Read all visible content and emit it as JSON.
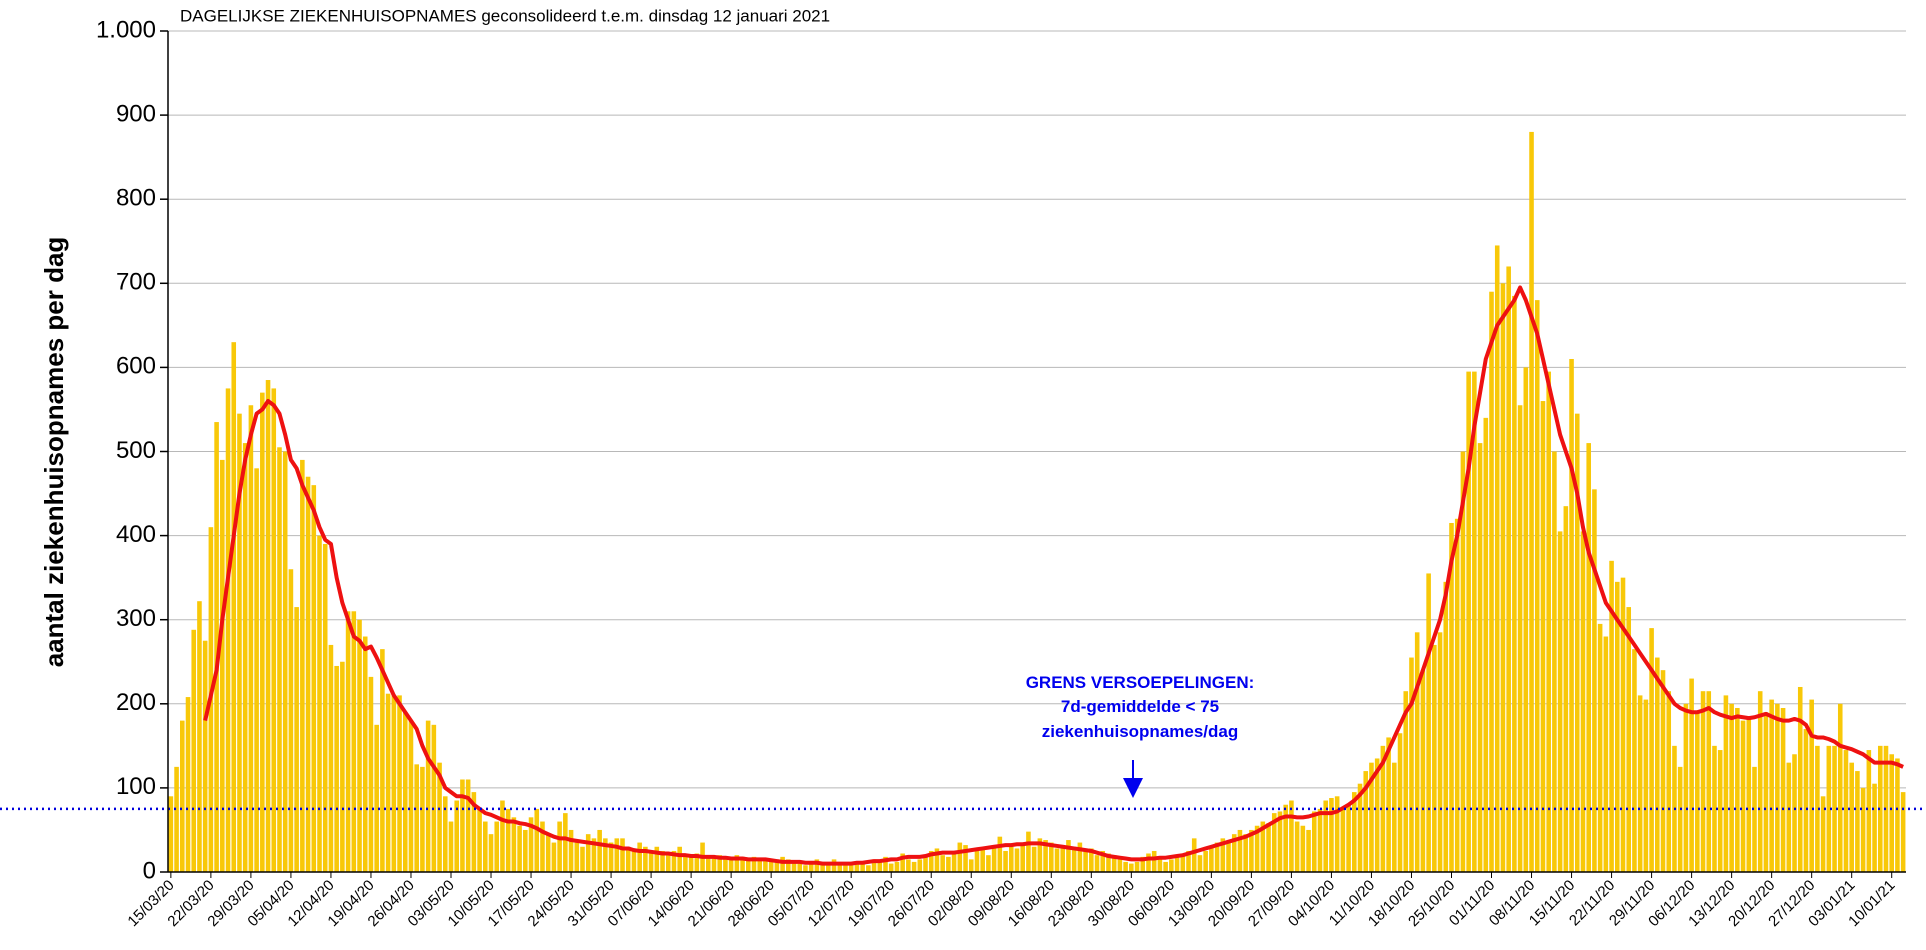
{
  "chart_data": {
    "type": "bar",
    "title": "DAGELIJKSE ZIEKENHUISOPNAMES geconsolideerd t.e.m. dinsdag 12 januari 2021",
    "y_label": "aantal ziekenhuisopnames per dag",
    "annotation": [
      "GRENS VERSOEPELINGEN:",
      "7d-gemiddelde < 75",
      "ziekenhuisopnames/dag"
    ],
    "threshold": 75,
    "threshold_color": "#0000dd",
    "grid": true,
    "ylim": [
      0,
      1000
    ],
    "yticks": [
      0,
      100,
      200,
      300,
      400,
      500,
      600,
      700,
      800,
      900,
      {
        "value": 1000,
        "label": "1.000"
      }
    ],
    "categories": [
      "15/03/20",
      null,
      null,
      null,
      null,
      null,
      null,
      "22/03/20",
      null,
      null,
      null,
      null,
      null,
      null,
      "29/03/20",
      null,
      null,
      null,
      null,
      null,
      null,
      "05/04/20",
      null,
      null,
      null,
      null,
      null,
      null,
      "12/04/20",
      null,
      null,
      null,
      null,
      null,
      null,
      "19/04/20",
      null,
      null,
      null,
      null,
      null,
      null,
      "26/04/20",
      null,
      null,
      null,
      null,
      null,
      null,
      "03/05/20",
      null,
      null,
      null,
      null,
      null,
      null,
      "10/05/20",
      null,
      null,
      null,
      null,
      null,
      null,
      "17/05/20",
      null,
      null,
      null,
      null,
      null,
      null,
      "24/05/20",
      null,
      null,
      null,
      null,
      null,
      null,
      "31/05/20",
      null,
      null,
      null,
      null,
      null,
      null,
      "07/06/20",
      null,
      null,
      null,
      null,
      null,
      null,
      "14/06/20",
      null,
      null,
      null,
      null,
      null,
      null,
      "21/06/20",
      null,
      null,
      null,
      null,
      null,
      null,
      "28/06/20",
      null,
      null,
      null,
      null,
      null,
      null,
      "05/07/20",
      null,
      null,
      null,
      null,
      null,
      null,
      "12/07/20",
      null,
      null,
      null,
      null,
      null,
      null,
      "19/07/20",
      null,
      null,
      null,
      null,
      null,
      null,
      "26/07/20",
      null,
      null,
      null,
      null,
      null,
      null,
      "02/08/20",
      null,
      null,
      null,
      null,
      null,
      null,
      "09/08/20",
      null,
      null,
      null,
      null,
      null,
      null,
      "16/08/20",
      null,
      null,
      null,
      null,
      null,
      null,
      "23/08/20",
      null,
      null,
      null,
      null,
      null,
      null,
      "30/08/20",
      null,
      null,
      null,
      null,
      null,
      null,
      "06/09/20",
      null,
      null,
      null,
      null,
      null,
      null,
      "13/09/20",
      null,
      null,
      null,
      null,
      null,
      null,
      "20/09/20",
      null,
      null,
      null,
      null,
      null,
      null,
      "27/09/20",
      null,
      null,
      null,
      null,
      null,
      null,
      "04/10/20",
      null,
      null,
      null,
      null,
      null,
      null,
      "11/10/20",
      null,
      null,
      null,
      null,
      null,
      null,
      "18/10/20",
      null,
      null,
      null,
      null,
      null,
      null,
      "25/10/20",
      null,
      null,
      null,
      null,
      null,
      null,
      "01/11/20",
      null,
      null,
      null,
      null,
      null,
      null,
      "08/11/20",
      null,
      null,
      null,
      null,
      null,
      null,
      "15/11/20",
      null,
      null,
      null,
      null,
      null,
      null,
      "22/11/20",
      null,
      null,
      null,
      null,
      null,
      null,
      "29/11/20",
      null,
      null,
      null,
      null,
      null,
      null,
      "06/12/20",
      null,
      null,
      null,
      null,
      null,
      null,
      "13/12/20",
      null,
      null,
      null,
      null,
      null,
      null,
      "20/12/20",
      null,
      null,
      null,
      null,
      null,
      null,
      "27/12/20",
      null,
      null,
      null,
      null,
      null,
      null,
      "03/01/21",
      null,
      null,
      null,
      null,
      null,
      null,
      "10/01/21",
      null,
      null
    ],
    "series": [
      {
        "type": "bar",
        "color": "#f8c808",
        "values": [
          90,
          125,
          180,
          208,
          288,
          322,
          275,
          410,
          535,
          490,
          575,
          630,
          545,
          510,
          555,
          480,
          570,
          585,
          575,
          505,
          500,
          360,
          315,
          490,
          470,
          460,
          400,
          390,
          270,
          245,
          250,
          310,
          310,
          300,
          280,
          232,
          175,
          265,
          212,
          210,
          210,
          190,
          180,
          128,
          125,
          180,
          175,
          130,
          90,
          60,
          85,
          110,
          110,
          95,
          75,
          60,
          45,
          60,
          85,
          75,
          65,
          55,
          50,
          65,
          75,
          60,
          45,
          35,
          60,
          70,
          50,
          35,
          30,
          45,
          40,
          50,
          40,
          35,
          40,
          40,
          30,
          25,
          35,
          30,
          25,
          30,
          25,
          20,
          25,
          30,
          20,
          18,
          22,
          35,
          20,
          18,
          20,
          15,
          15,
          20,
          18,
          15,
          18,
          15,
          15,
          12,
          15,
          18,
          15,
          12,
          10,
          8,
          10,
          15,
          12,
          10,
          15,
          10,
          8,
          8,
          10,
          10,
          8,
          15,
          12,
          18,
          10,
          12,
          22,
          15,
          12,
          15,
          20,
          25,
          28,
          20,
          18,
          22,
          35,
          32,
          15,
          25,
          28,
          20,
          30,
          42,
          25,
          30,
          28,
          35,
          48,
          30,
          40,
          38,
          35,
          28,
          32,
          38,
          30,
          35,
          25,
          28,
          20,
          25,
          22,
          20,
          15,
          12,
          10,
          12,
          18,
          22,
          25,
          15,
          12,
          15,
          18,
          22,
          25,
          40,
          20,
          25,
          30,
          35,
          40,
          35,
          45,
          50,
          45,
          50,
          55,
          60,
          58,
          70,
          72,
          80,
          85,
          60,
          55,
          50,
          72,
          75,
          85,
          88,
          90,
          75,
          80,
          95,
          105,
          120,
          130,
          135,
          150,
          160,
          130,
          165,
          215,
          255,
          285,
          240,
          355,
          270,
          285,
          345,
          415,
          420,
          500,
          595,
          595,
          510,
          540,
          690,
          745,
          700,
          720,
          685,
          555,
          600,
          880,
          680,
          560,
          595,
          500,
          405,
          435,
          610,
          545,
          405,
          510,
          455,
          295,
          280,
          370,
          345,
          350,
          315,
          265,
          210,
          205,
          290,
          255,
          240,
          215,
          150,
          125,
          200,
          230,
          190,
          215,
          215,
          150,
          145,
          210,
          200,
          195,
          180,
          185,
          125,
          215,
          190,
          205,
          200,
          195,
          130,
          140,
          220,
          170,
          205,
          150,
          90,
          150,
          150,
          200,
          145,
          130,
          120,
          100,
          145,
          105,
          150,
          150,
          140,
          135,
          95
        ]
      },
      {
        "type": "line",
        "color": "#ee1111",
        "values": [
          null,
          null,
          null,
          null,
          null,
          null,
          180,
          210,
          240,
          300,
          350,
          400,
          450,
          490,
          520,
          545,
          550,
          560,
          555,
          545,
          520,
          490,
          480,
          460,
          445,
          430,
          410,
          395,
          390,
          350,
          320,
          300,
          280,
          275,
          265,
          268,
          255,
          240,
          225,
          210,
          200,
          190,
          180,
          170,
          150,
          135,
          125,
          115,
          100,
          95,
          90,
          90,
          88,
          80,
          75,
          70,
          68,
          65,
          62,
          60,
          60,
          58,
          57,
          55,
          52,
          48,
          45,
          42,
          40,
          40,
          38,
          37,
          36,
          35,
          34,
          33,
          32,
          31,
          30,
          28,
          28,
          26,
          25,
          25,
          24,
          23,
          22,
          22,
          21,
          20,
          20,
          19,
          19,
          18,
          18,
          18,
          17,
          17,
          16,
          16,
          16,
          15,
          15,
          15,
          15,
          14,
          13,
          12,
          12,
          12,
          12,
          11,
          11,
          11,
          10,
          10,
          10,
          10,
          10,
          10,
          11,
          11,
          12,
          13,
          13,
          14,
          15,
          15,
          17,
          18,
          18,
          18,
          19,
          21,
          22,
          23,
          23,
          23,
          24,
          25,
          26,
          27,
          28,
          29,
          30,
          31,
          32,
          32,
          33,
          33,
          34,
          34,
          34,
          33,
          32,
          31,
          30,
          29,
          28,
          27,
          26,
          25,
          23,
          21,
          19,
          18,
          17,
          16,
          15,
          15,
          15,
          16,
          16,
          17,
          17,
          18,
          19,
          20,
          22,
          24,
          26,
          28,
          30,
          32,
          34,
          36,
          38,
          40,
          42,
          45,
          48,
          52,
          56,
          60,
          64,
          66,
          66,
          65,
          65,
          66,
          68,
          70,
          70,
          70,
          72,
          76,
          80,
          85,
          92,
          100,
          110,
          120,
          130,
          145,
          160,
          175,
          190,
          200,
          220,
          240,
          260,
          280,
          300,
          330,
          370,
          400,
          440,
          480,
          530,
          570,
          610,
          630,
          650,
          660,
          670,
          680,
          695,
          680,
          660,
          640,
          610,
          580,
          550,
          520,
          500,
          480,
          450,
          410,
          380,
          360,
          340,
          320,
          310,
          300,
          290,
          280,
          270,
          260,
          250,
          240,
          230,
          220,
          210,
          200,
          195,
          192,
          190,
          190,
          192,
          195,
          190,
          187,
          185,
          183,
          185,
          184,
          183,
          184,
          186,
          188,
          185,
          182,
          180,
          180,
          182,
          180,
          175,
          162,
          160,
          160,
          158,
          155,
          150,
          148,
          146,
          143,
          140,
          135,
          130,
          130,
          130,
          130,
          128,
          125
        ]
      }
    ]
  }
}
